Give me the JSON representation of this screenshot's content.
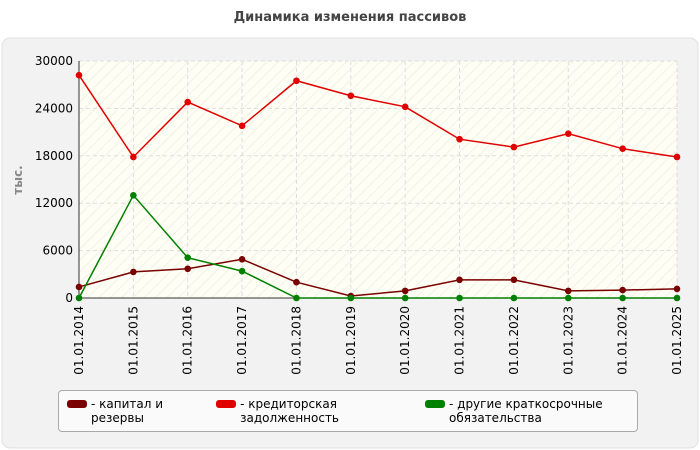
{
  "chart_data": {
    "type": "line",
    "title": "Динамика изменения пассивов",
    "y_label": "тыс.",
    "categories": [
      "01.01.2014",
      "01.01.2015",
      "01.01.2016",
      "01.01.2017",
      "01.01.2018",
      "01.01.2019",
      "01.01.2020",
      "01.01.2021",
      "01.01.2022",
      "01.01.2023",
      "01.01.2024",
      "01.01.2025"
    ],
    "series": [
      {
        "name": "- капитал и резервы",
        "color": "#7a0000",
        "values": [
          1400,
          3300,
          3700,
          4900,
          2000,
          250,
          900,
          2300,
          2300,
          900,
          1000,
          1150
        ]
      },
      {
        "name": "- кредиторская задолженность",
        "color": "#e00000",
        "values": [
          28200,
          17850,
          24800,
          21800,
          27500,
          25600,
          24200,
          20100,
          19100,
          20800,
          18900,
          17850
        ]
      },
      {
        "name": "- другие краткосрочные обязательства",
        "color": "#008000",
        "values": [
          0,
          13000,
          5100,
          3400,
          0,
          0,
          0,
          0,
          0,
          0,
          0,
          0
        ]
      }
    ],
    "ylim": [
      0,
      30000
    ],
    "yticks": [
      0,
      6000,
      12000,
      18000,
      24000,
      30000
    ],
    "grid": true
  }
}
